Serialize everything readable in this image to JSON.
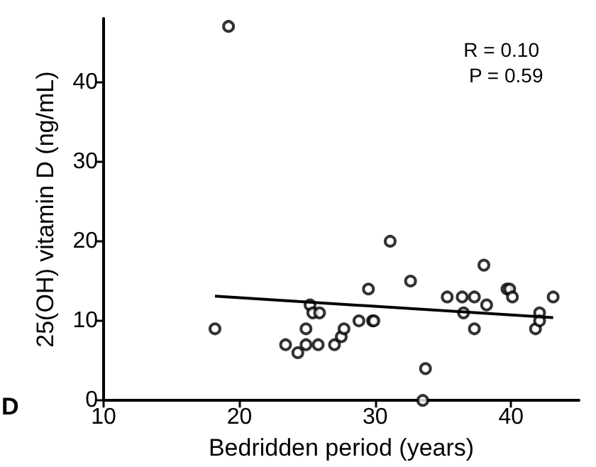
{
  "chart_data": {
    "type": "scatter",
    "xlabel": "Bedridden period (years)",
    "ylabel": "25(OH) vitamin D (ng/mL)",
    "annotations": [
      "R = 0.10",
      "P = 0.59",
      "D"
    ],
    "xlim": [
      10,
      45
    ],
    "xticks": [
      10,
      20,
      30,
      40
    ],
    "ylim": [
      0,
      48
    ],
    "yticks": [
      0,
      10,
      20,
      30,
      40
    ],
    "grid": false,
    "marker": "circle",
    "series": [
      {
        "color": "#000000",
        "x": [
          18.2,
          19.2,
          23.4,
          24.3,
          24.9,
          24.9,
          25.2,
          25.4,
          25.8,
          25.9,
          27.0,
          27.5,
          27.7,
          28.8,
          29.5,
          29.8,
          29.9,
          31.1,
          32.6,
          33.5,
          33.7,
          35.3,
          36.4,
          36.5,
          37.3,
          37.3,
          38.0,
          38.2,
          39.7,
          39.9,
          40.1,
          41.8,
          42.1,
          42.1,
          43.1
        ],
        "values": [
          9,
          47,
          7,
          6,
          9,
          7,
          12,
          11,
          7,
          11,
          7,
          8,
          9,
          10,
          14,
          10,
          10,
          20,
          15,
          0,
          4,
          13,
          13,
          11,
          13,
          9,
          17,
          12,
          14,
          14,
          13,
          9,
          11,
          10,
          13
        ]
      },
      {
        "type": "line",
        "color": "#000000",
        "marker": "none",
        "x": [
          18.2,
          43.1
        ],
        "values": [
          13.1,
          10.4
        ]
      }
    ]
  }
}
